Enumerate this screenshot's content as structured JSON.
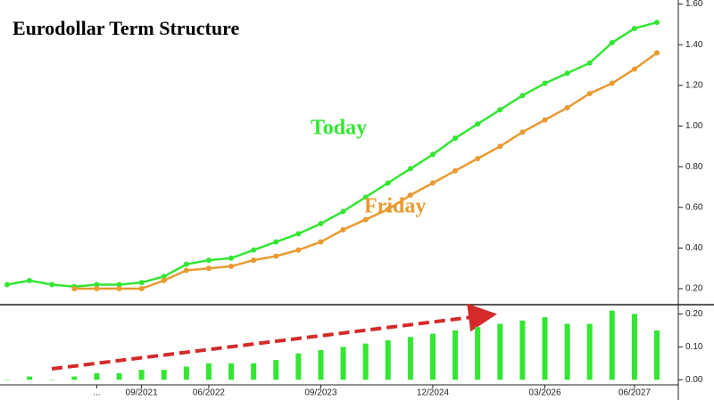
{
  "chart_data": [
    {
      "type": "line",
      "title": "Eurodollar Term Structure",
      "categories": [
        null,
        null,
        null,
        null,
        "...",
        null,
        "09/2021",
        null,
        null,
        "06/2022",
        null,
        null,
        null,
        null,
        "09/2023",
        null,
        null,
        null,
        null,
        "12/2024",
        null,
        null,
        null,
        null,
        "03/2026",
        null,
        null,
        null,
        "06/2027",
        null
      ],
      "series": [
        {
          "name": "Today",
          "color": "#33e633",
          "values": [
            0.22,
            0.24,
            0.22,
            0.21,
            0.22,
            0.22,
            0.23,
            0.26,
            0.32,
            0.34,
            0.35,
            0.39,
            0.43,
            0.47,
            0.52,
            0.58,
            0.65,
            0.72,
            0.79,
            0.86,
            0.94,
            1.01,
            1.08,
            1.15,
            1.21,
            1.26,
            1.31,
            1.41,
            1.48,
            1.51
          ]
        },
        {
          "name": "Friday",
          "color": "#e89a30",
          "values": [
            null,
            null,
            null,
            0.2,
            0.2,
            0.2,
            0.2,
            0.24,
            0.29,
            0.3,
            0.31,
            0.34,
            0.36,
            0.39,
            0.43,
            0.49,
            0.54,
            0.59,
            0.66,
            0.72,
            0.78,
            0.84,
            0.9,
            0.97,
            1.03,
            1.09,
            1.16,
            1.21,
            1.28,
            1.36
          ]
        }
      ],
      "ylim": [
        0.13,
        1.62
      ],
      "yticks": [
        {
          "value": 0.2,
          "label": "0.20"
        },
        {
          "value": 0.4,
          "label": "0.40"
        },
        {
          "value": 0.6,
          "label": "0.60"
        },
        {
          "value": 0.8,
          "label": "0.80"
        },
        {
          "value": 1.0,
          "label": "1.00"
        },
        {
          "value": 1.2,
          "label": "1.20"
        },
        {
          "value": 1.4,
          "label": "1.40"
        },
        {
          "value": 1.6,
          "label": "1.60"
        }
      ]
    },
    {
      "type": "bar",
      "color": "#33e633",
      "values": [
        0.0,
        0.01,
        0.0,
        0.01,
        0.02,
        0.02,
        0.03,
        0.03,
        0.04,
        0.05,
        0.05,
        0.05,
        0.06,
        0.08,
        0.09,
        0.1,
        0.11,
        0.12,
        0.13,
        0.14,
        0.15,
        0.16,
        0.17,
        0.18,
        0.19,
        0.17,
        0.17,
        0.21,
        0.2,
        0.15
      ],
      "ylim": [
        -0.01,
        0.22
      ],
      "yticks": [
        {
          "value": 0.0,
          "label": "0.00"
        },
        {
          "value": 0.1,
          "label": "0.10"
        },
        {
          "value": 0.2,
          "label": "0.20"
        }
      ]
    }
  ]
}
